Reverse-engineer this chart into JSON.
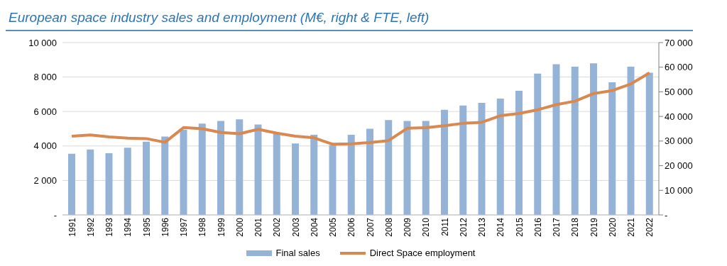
{
  "chart_data": {
    "type": "bar",
    "title": "European space industry sales and employment (M€, right & FTE, left)",
    "categories": [
      "1991",
      "1992",
      "1993",
      "1994",
      "1995",
      "1996",
      "1997",
      "1998",
      "1999",
      "2000",
      "2001",
      "2002",
      "2003",
      "2004",
      "2005",
      "2006",
      "2007",
      "2008",
      "2009",
      "2010",
      "2011",
      "2012",
      "2013",
      "2014",
      "2015",
      "2016",
      "2017",
      "2018",
      "2019",
      "2020",
      "2021",
      "2022"
    ],
    "series": [
      {
        "name": "Final sales",
        "color": "#95b3d7",
        "values": [
          3550,
          3800,
          3580,
          3900,
          4250,
          4550,
          4950,
          5300,
          5450,
          5550,
          5250,
          4700,
          4150,
          4650,
          4050,
          4650,
          5000,
          5500,
          5450,
          5450,
          6100,
          6350,
          6500,
          6750,
          7200,
          8200,
          8750,
          8600,
          8800,
          7700,
          8600,
          8250
        ]
      },
      {
        "name": "Direct Space employment",
        "type": "line",
        "axis": "y2",
        "color": "#d9884f",
        "values": [
          32000,
          32500,
          31700,
          31200,
          31000,
          29500,
          35500,
          35000,
          33500,
          33000,
          34800,
          33200,
          32000,
          31300,
          28700,
          28900,
          29400,
          30200,
          35200,
          35400,
          36200,
          37200,
          37600,
          40300,
          41200,
          42700,
          44800,
          46200,
          49300,
          50500,
          53200,
          57700
        ]
      }
    ],
    "ylim": [
      0,
      10000
    ],
    "yticks": [
      {
        "value": 0,
        "label": "-"
      },
      {
        "value": 2000,
        "label": "2 000"
      },
      {
        "value": 4000,
        "label": "4 000"
      },
      {
        "value": 6000,
        "label": "6 000"
      },
      {
        "value": 8000,
        "label": "8 000"
      },
      {
        "value": 10000,
        "label": "10 000"
      }
    ],
    "y2lim": [
      0,
      70000
    ],
    "y2ticks": [
      {
        "value": 0,
        "label": "-"
      },
      {
        "value": 10000,
        "label": "10 000"
      },
      {
        "value": 20000,
        "label": "20 000"
      },
      {
        "value": 30000,
        "label": "30 000"
      },
      {
        "value": 40000,
        "label": "40 000"
      },
      {
        "value": 50000,
        "label": "50 000"
      },
      {
        "value": 60000,
        "label": "60 000"
      },
      {
        "value": 70000,
        "label": "70 000"
      }
    ],
    "grid": "y",
    "legend": "bottom",
    "marker": "none",
    "line_style": "solid"
  }
}
